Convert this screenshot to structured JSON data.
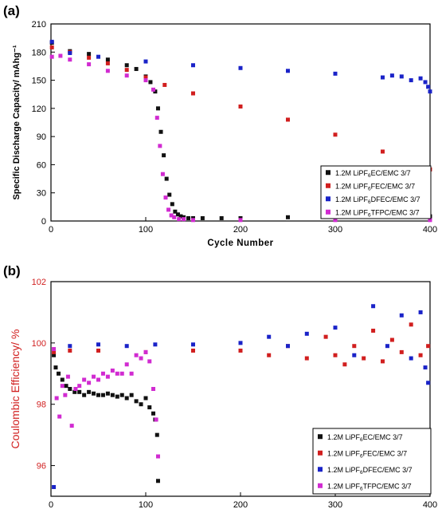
{
  "panel_labels": [
    "(a)",
    "(b)"
  ],
  "legend_entries": [
    {
      "pre": "1.2M LiPF",
      "sub": "6",
      "post": "EC/EMC 3/7",
      "color": "#111111"
    },
    {
      "pre": "1.2M LiPF",
      "sub": "6",
      "post": "FEC/EMC 3/7",
      "color": "#d11f1f"
    },
    {
      "pre": "1.2M LiPF",
      "sub": "6",
      "post": "DFEC/EMC 3/7",
      "color": "#1a23c8"
    },
    {
      "pre": "1.2M LiPF",
      "sub": "6",
      "post": "TFPC/EMC 3/7",
      "color": "#d12bd1"
    }
  ],
  "chart_data": [
    {
      "type": "scatter",
      "panel": "(a)",
      "xlabel": "Cycle Number",
      "ylabel": "Specific Discharge Capacity/ mAhg⁻¹",
      "xlim": [
        0,
        400
      ],
      "ylim": [
        0,
        210
      ],
      "xticks": [
        0,
        100,
        200,
        300,
        400
      ],
      "yticks": [
        0,
        30,
        60,
        90,
        120,
        150,
        180,
        210
      ],
      "ylabel_color": "#000000",
      "legend_position": "lower-right",
      "series": [
        {
          "name": "1.2M LiPF6 EC/EMC 3/7",
          "color": "#111111",
          "x": [
            1,
            20,
            40,
            60,
            80,
            90,
            100,
            105,
            110,
            113,
            116,
            119,
            122,
            125,
            128,
            131,
            134,
            137,
            140,
            145,
            150,
            160,
            180,
            200,
            250,
            300,
            350,
            400
          ],
          "y": [
            190,
            181,
            178,
            172,
            166,
            162,
            154,
            148,
            138,
            120,
            95,
            70,
            45,
            28,
            18,
            10,
            7,
            5,
            4,
            3,
            3,
            3,
            3,
            3,
            4,
            5,
            5,
            5
          ]
        },
        {
          "name": "1.2M LiPF6 FEC/EMC 3/7",
          "color": "#d11f1f",
          "x": [
            1,
            20,
            40,
            60,
            80,
            100,
            120,
            150,
            200,
            250,
            300,
            350,
            400
          ],
          "y": [
            185,
            180,
            174,
            168,
            161,
            153,
            145,
            136,
            122,
            108,
            92,
            74,
            55
          ]
        },
        {
          "name": "1.2M LiPF6 DFEC/EMC 3/7",
          "color": "#1a23c8",
          "x": [
            1,
            20,
            50,
            100,
            150,
            200,
            250,
            300,
            350,
            360,
            370,
            380,
            390,
            395,
            398,
            400
          ],
          "y": [
            191,
            179,
            175,
            170,
            166,
            163,
            160,
            157,
            153,
            155,
            154,
            150,
            152,
            148,
            143,
            138
          ]
        },
        {
          "name": "1.2M LiPF6 TFPC/EMC 3/7",
          "color": "#d12bd1",
          "x": [
            1,
            10,
            20,
            40,
            60,
            80,
            100,
            108,
            112,
            115,
            118,
            121,
            124,
            127,
            130,
            135,
            140,
            150,
            200,
            300,
            400
          ],
          "y": [
            175,
            176,
            172,
            167,
            160,
            155,
            150,
            140,
            110,
            80,
            50,
            25,
            12,
            6,
            4,
            2,
            2,
            1,
            1,
            1,
            1
          ]
        }
      ]
    },
    {
      "type": "scatter",
      "panel": "(b)",
      "xlabel": "Cycle Number",
      "ylabel": "Coulombic Efficiency/ %",
      "xlim": [
        0,
        400
      ],
      "ylim": [
        95,
        102
      ],
      "xticks": [
        0,
        100,
        200,
        300,
        400
      ],
      "yticks": [
        96,
        98,
        100,
        102
      ],
      "ylabel_color": "#d11f1f",
      "legend_position": "lower-right",
      "series": [
        {
          "name": "1.2M LiPF6 EC/EMC 3/7",
          "color": "#111111",
          "x": [
            3,
            5,
            8,
            12,
            16,
            20,
            25,
            30,
            35,
            40,
            45,
            50,
            55,
            60,
            65,
            70,
            75,
            80,
            85,
            90,
            95,
            100,
            104,
            108,
            110,
            112,
            113
          ],
          "y": [
            99.6,
            99.2,
            99.0,
            98.8,
            98.6,
            98.5,
            98.4,
            98.4,
            98.3,
            98.4,
            98.35,
            98.3,
            98.3,
            98.35,
            98.3,
            98.25,
            98.3,
            98.2,
            98.3,
            98.1,
            98.0,
            98.2,
            97.9,
            97.7,
            97.5,
            97.0,
            95.5
          ]
        },
        {
          "name": "1.2M LiPF6 FEC/EMC 3/7",
          "color": "#d11f1f",
          "x": [
            3,
            20,
            50,
            100,
            150,
            200,
            230,
            250,
            270,
            290,
            300,
            310,
            320,
            330,
            340,
            350,
            360,
            370,
            380,
            390,
            398
          ],
          "y": [
            99.7,
            99.75,
            99.75,
            99.7,
            99.75,
            99.75,
            99.6,
            99.9,
            99.5,
            100.2,
            99.6,
            99.3,
            99.9,
            99.5,
            100.4,
            99.4,
            100.1,
            99.7,
            100.6,
            99.6,
            99.9
          ]
        },
        {
          "name": "1.2M LiPF6 DFEC/EMC 3/7",
          "color": "#1a23c8",
          "x": [
            3,
            20,
            50,
            80,
            110,
            150,
            200,
            230,
            250,
            270,
            300,
            320,
            340,
            355,
            370,
            380,
            390,
            395,
            398
          ],
          "y": [
            95.3,
            99.9,
            99.95,
            99.9,
            99.95,
            99.95,
            100.0,
            100.2,
            99.9,
            100.3,
            100.5,
            99.6,
            101.2,
            99.9,
            100.9,
            99.5,
            101.0,
            99.2,
            98.7
          ]
        },
        {
          "name": "1.2M LiPF6 TFPC/EMC 3/7",
          "color": "#d12bd1",
          "x": [
            3,
            6,
            9,
            12,
            15,
            18,
            22,
            26,
            30,
            35,
            40,
            45,
            50,
            55,
            60,
            65,
            70,
            75,
            80,
            85,
            90,
            95,
            100,
            104,
            108,
            111,
            113
          ],
          "y": [
            99.8,
            98.2,
            97.6,
            98.6,
            98.3,
            98.9,
            97.3,
            98.5,
            98.6,
            98.8,
            98.7,
            98.9,
            98.8,
            99.0,
            98.9,
            99.1,
            99.0,
            99.0,
            99.3,
            99.0,
            99.6,
            99.5,
            99.7,
            99.4,
            98.5,
            97.5,
            96.3
          ]
        }
      ]
    }
  ]
}
